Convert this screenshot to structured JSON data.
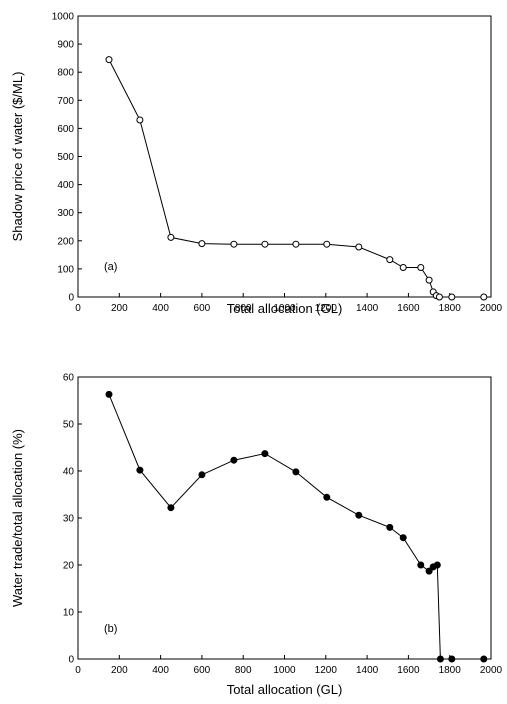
{
  "chart_data": [
    {
      "type": "line",
      "panel_label": "(a)",
      "xlabel": "Total allocation (GL)",
      "ylabel": "Shadow price of water ($/ML)",
      "xlim": [
        0,
        2000
      ],
      "ylim": [
        0,
        1000
      ],
      "xticks": [
        0,
        200,
        400,
        600,
        800,
        1000,
        1200,
        1400,
        1600,
        1800,
        2000
      ],
      "yticks": [
        0,
        100,
        200,
        300,
        400,
        500,
        600,
        700,
        800,
        900,
        1000
      ],
      "marker": "open-circle",
      "grid": false,
      "series": [
        {
          "x": [
            150,
            300,
            450,
            600,
            755,
            905,
            1055,
            1205,
            1360,
            1510,
            1575,
            1660,
            1700,
            1720,
            1735,
            1750,
            1810,
            1965
          ],
          "y": [
            845,
            630,
            212,
            190,
            188,
            188,
            188,
            188,
            178,
            133,
            105,
            105,
            60,
            18,
            5,
            0,
            0,
            0
          ]
        }
      ]
    },
    {
      "type": "line",
      "panel_label": "(b)",
      "xlabel": "Total allocation (GL)",
      "ylabel": "Water trade/total allocation (%)",
      "xlim": [
        0,
        2000
      ],
      "ylim": [
        0,
        60
      ],
      "xticks": [
        0,
        200,
        400,
        600,
        800,
        1000,
        1200,
        1400,
        1600,
        1800,
        2000
      ],
      "yticks": [
        0,
        10,
        20,
        30,
        40,
        50,
        60
      ],
      "marker": "filled-circle",
      "grid": false,
      "series": [
        {
          "x": [
            150,
            300,
            450,
            600,
            755,
            905,
            1055,
            1205,
            1360,
            1510,
            1575,
            1660,
            1700,
            1720,
            1740,
            1755,
            1810,
            1965
          ],
          "y": [
            56.3,
            40.2,
            32.2,
            39.2,
            42.3,
            43.7,
            39.8,
            34.4,
            30.6,
            28.0,
            25.8,
            20.0,
            18.7,
            19.6,
            20.0,
            0,
            0,
            0
          ]
        }
      ]
    }
  ]
}
